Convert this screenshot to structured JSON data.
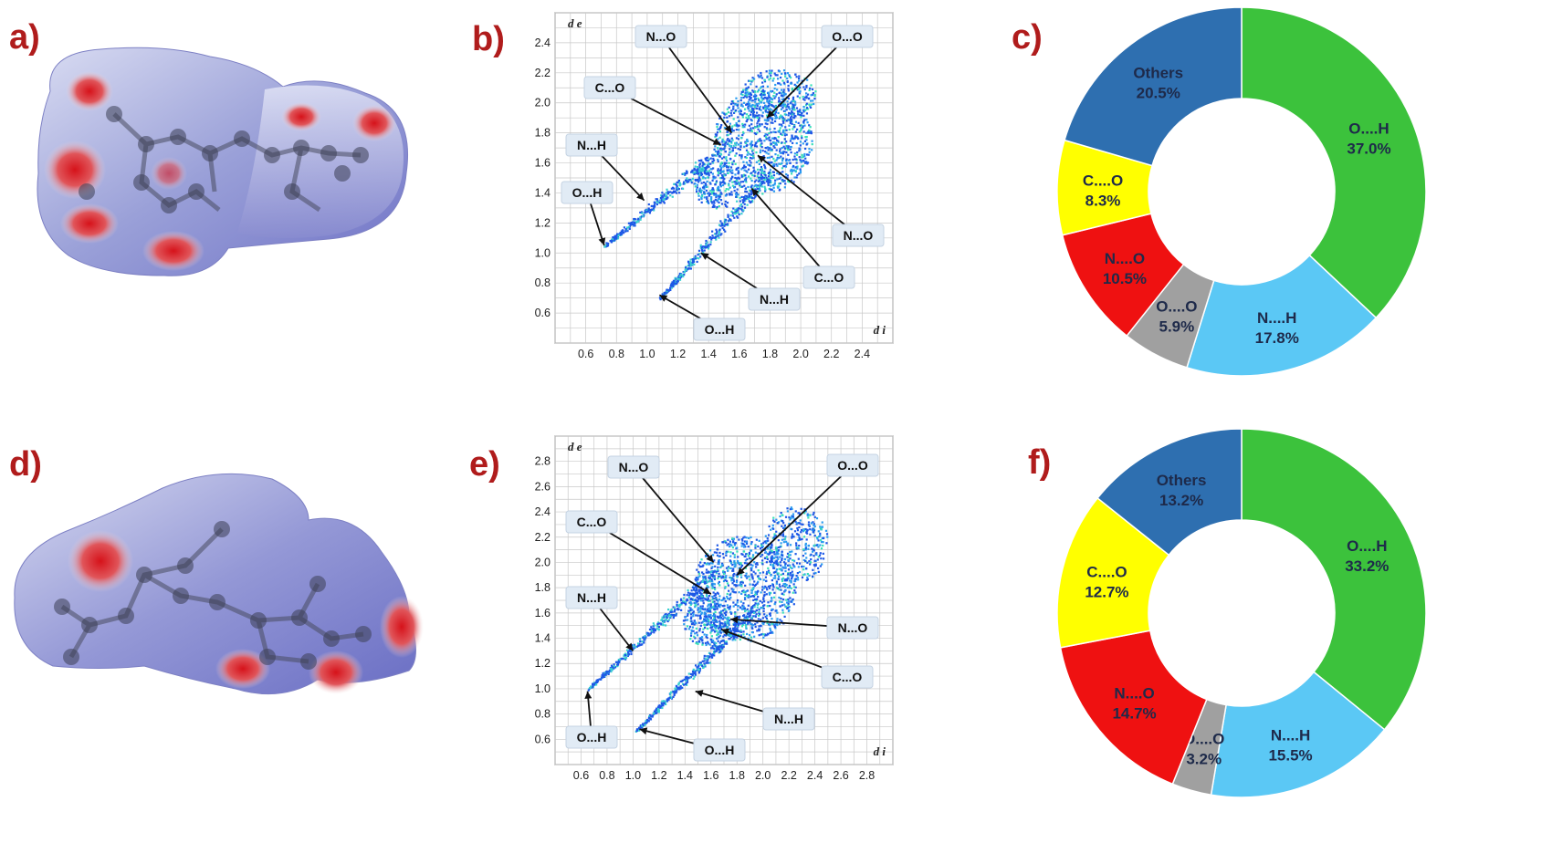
{
  "panels": {
    "a": "a)",
    "b": "b)",
    "c": "c)",
    "d": "d)",
    "e": "e)",
    "f": "f)"
  },
  "colors": {
    "panel_letter": "#b01c1c",
    "o_h": "#3cc23c",
    "n_h": "#5bc8f5",
    "o_o": "#a0a0a0",
    "n_o": "#ef1111",
    "c_o": "#ffff00",
    "others": "#2e6fb0"
  },
  "chart_data": [
    {
      "id": "b",
      "type": "scatter",
      "xlabel": "d i",
      "ylabel": "d e",
      "x_ticks": [
        "0.6",
        "0.8",
        "1.0",
        "1.2",
        "1.4",
        "1.6",
        "1.8",
        "2.0",
        "2.2",
        "2.4"
      ],
      "y_ticks": [
        "0.6",
        "0.8",
        "1.0",
        "1.2",
        "1.4",
        "1.6",
        "1.8",
        "2.0",
        "2.2",
        "2.4"
      ],
      "xlim": [
        0.4,
        2.6
      ],
      "ylim": [
        0.4,
        2.6
      ],
      "callouts": [
        {
          "label": "N...O",
          "tx": 1.55,
          "ty": 1.8
        },
        {
          "label": "O...O",
          "tx": 1.78,
          "ty": 1.9
        },
        {
          "label": "C...O",
          "tx": 1.48,
          "ty": 1.72
        },
        {
          "label": "N...H",
          "tx": 0.98,
          "ty": 1.35
        },
        {
          "label": "O...H",
          "tx": 0.72,
          "ty": 1.05
        },
        {
          "label": "N...O",
          "tx": 1.72,
          "ty": 1.65
        },
        {
          "label": "C...O",
          "tx": 1.68,
          "ty": 1.43
        },
        {
          "label": "N...H",
          "tx": 1.35,
          "ty": 1.0
        },
        {
          "label": "O...H",
          "tx": 1.08,
          "ty": 0.72
        }
      ]
    },
    {
      "id": "c",
      "type": "pie",
      "donut": true,
      "slices": [
        {
          "name": "O....H",
          "value": 37.0,
          "label": "37.0%",
          "color": "#3cc23c"
        },
        {
          "name": "N....H",
          "value": 17.8,
          "label": "17.8%",
          "color": "#5bc8f5"
        },
        {
          "name": "O....O",
          "value": 5.9,
          "label": "5.9%",
          "color": "#a0a0a0"
        },
        {
          "name": "N....O",
          "value": 10.5,
          "label": "10.5%",
          "color": "#ef1111"
        },
        {
          "name": "C....O",
          "value": 8.3,
          "label": "8.3%",
          "color": "#ffff00"
        },
        {
          "name": "Others",
          "value": 20.5,
          "label": "20.5%",
          "color": "#2e6fb0"
        }
      ]
    },
    {
      "id": "e",
      "type": "scatter",
      "xlabel": "d i",
      "ylabel": "d e",
      "x_ticks": [
        "0.6",
        "0.8",
        "1.0",
        "1.2",
        "1.4",
        "1.6",
        "1.8",
        "2.0",
        "2.2",
        "2.4",
        "2.6",
        "2.8"
      ],
      "y_ticks": [
        "0.6",
        "0.8",
        "1.0",
        "1.2",
        "1.4",
        "1.6",
        "1.8",
        "2.0",
        "2.2",
        "2.4",
        "2.6",
        "2.8"
      ],
      "xlim": [
        0.4,
        3.0
      ],
      "ylim": [
        0.4,
        3.0
      ],
      "callouts": [
        {
          "label": "N...O",
          "tx": 1.62,
          "ty": 2.0
        },
        {
          "label": "O...O",
          "tx": 1.8,
          "ty": 1.9
        },
        {
          "label": "C...O",
          "tx": 1.6,
          "ty": 1.75
        },
        {
          "label": "N...H",
          "tx": 1.0,
          "ty": 1.3
        },
        {
          "label": "O...H",
          "tx": 0.65,
          "ty": 0.98
        },
        {
          "label": "N...O",
          "tx": 1.75,
          "ty": 1.55
        },
        {
          "label": "C...O",
          "tx": 1.68,
          "ty": 1.47
        },
        {
          "label": "N...H",
          "tx": 1.48,
          "ty": 0.98
        },
        {
          "label": "O...H",
          "tx": 1.05,
          "ty": 0.68
        }
      ]
    },
    {
      "id": "f",
      "type": "pie",
      "donut": true,
      "slices": [
        {
          "name": "O....H",
          "value": 33.2,
          "label": "33.2%",
          "color": "#3cc23c"
        },
        {
          "name": "N....H",
          "value": 15.5,
          "label": "15.5%",
          "color": "#5bc8f5"
        },
        {
          "name": "O....O",
          "value": 3.2,
          "label": "3.2%",
          "color": "#a0a0a0"
        },
        {
          "name": "N....O",
          "value": 14.7,
          "label": "14.7%",
          "color": "#ef1111"
        },
        {
          "name": "C....O",
          "value": 12.7,
          "label": "12.7%",
          "color": "#ffff00"
        },
        {
          "name": "Others",
          "value": 13.2,
          "label": "13.2%",
          "color": "#2e6fb0"
        }
      ]
    }
  ]
}
